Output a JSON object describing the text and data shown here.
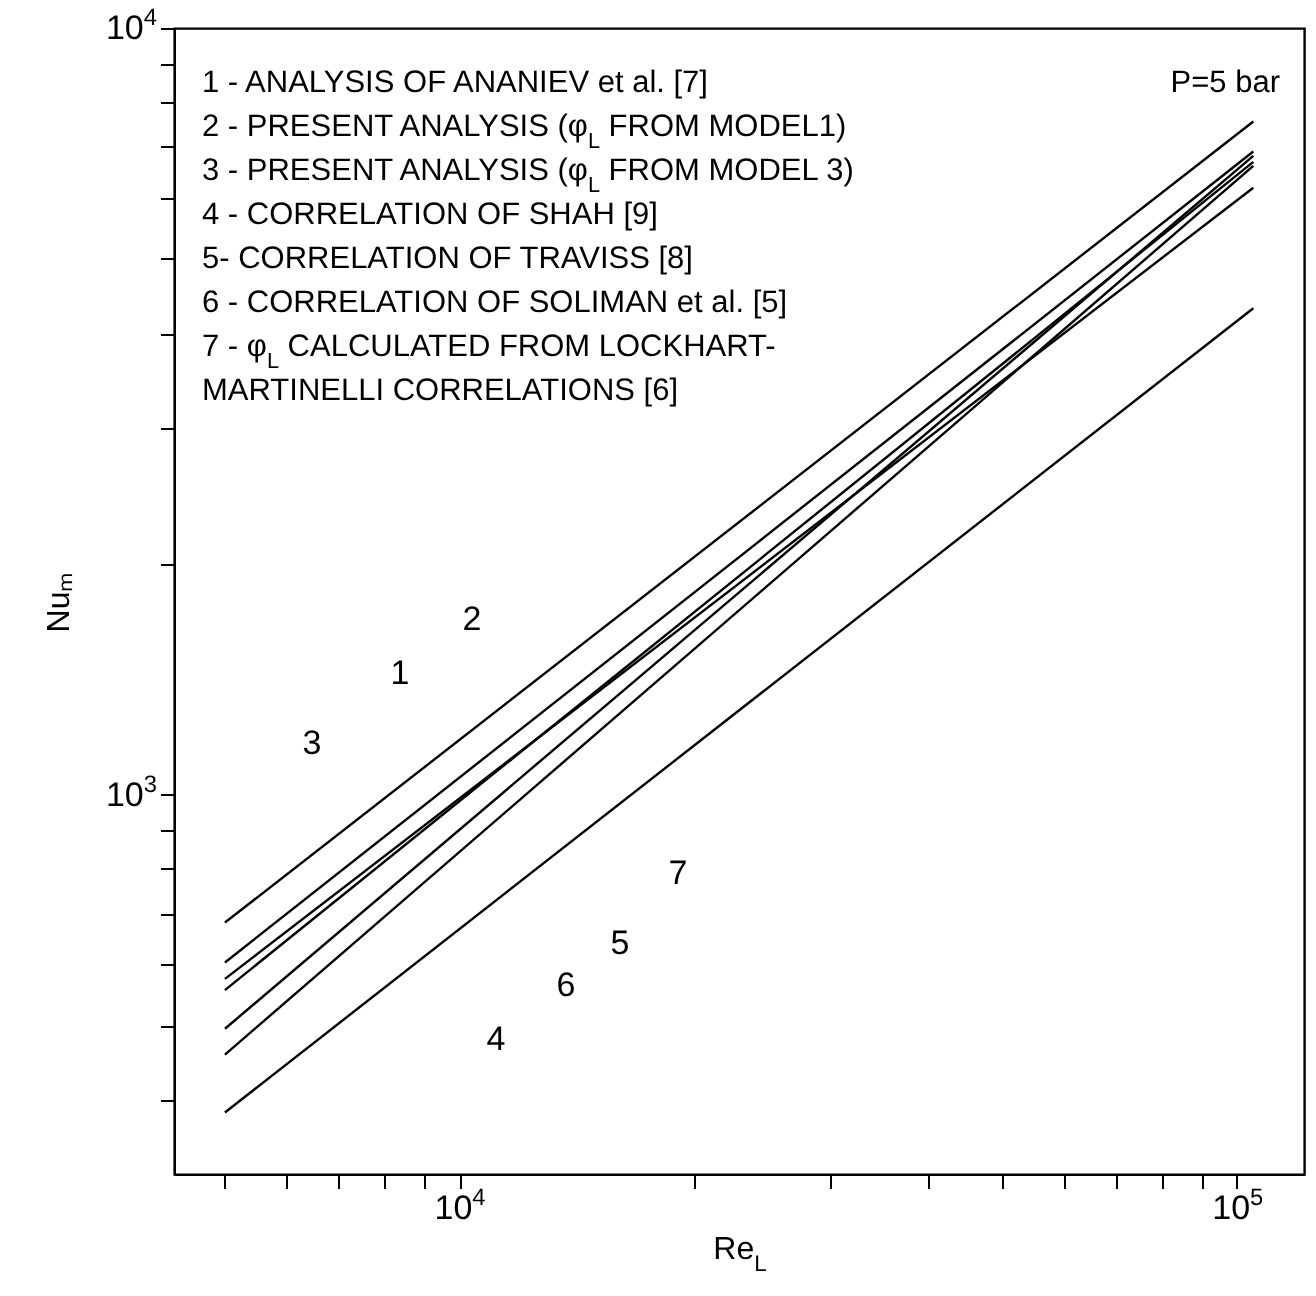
{
  "chart_data": {
    "type": "line",
    "xlabel": "Re$_{L}$",
    "ylabel": "Nuₘ",
    "x": [
      5000,
      105000
    ],
    "series": [
      {
        "color": "#000000",
        "values": [
          575,
          6190
        ]
      },
      {
        "color": "#000000",
        "values": [
          604,
          6900
        ]
      },
      {
        "color": "#000000",
        "values": [
          681,
          7550
        ]
      },
      {
        "color": "#000000",
        "values": [
          385,
          4310
        ]
      },
      {
        "color": "#000000",
        "values": [
          495,
          6810
        ]
      },
      {
        "color": "#000000",
        "values": [
          458,
          6610
        ]
      },
      {
        "color": "#000000",
        "values": [
          556,
          6690
        ]
      }
    ],
    "log": "xy",
    "grid": false,
    "xlim": [
      4300,
      122000
    ],
    "ylim": [
      320,
      10000
    ],
    "xticks": [
      {
        "value": 5000,
        "label": null
      },
      {
        "value": 6000,
        "label": null
      },
      {
        "value": 7000,
        "label": null
      },
      {
        "value": 8000,
        "label": null
      },
      {
        "value": 9000,
        "label": null
      },
      {
        "value": 10000,
        "label": "10$^{4}$"
      },
      {
        "value": 20000,
        "label": null
      },
      {
        "value": 30000,
        "label": null
      },
      {
        "value": 40000,
        "label": null
      },
      {
        "value": 50000,
        "label": null
      },
      {
        "value": 60000,
        "label": null
      },
      {
        "value": 70000,
        "label": null
      },
      {
        "value": 80000,
        "label": null
      },
      {
        "value": 90000,
        "label": null
      },
      {
        "value": 100000,
        "label": "10$^{5}$"
      }
    ],
    "yticks": [
      {
        "value": 400,
        "label": null
      },
      {
        "value": 500,
        "label": null
      },
      {
        "value": 600,
        "label": null
      },
      {
        "value": 700,
        "label": null
      },
      {
        "value": 800,
        "label": null
      },
      {
        "value": 900,
        "label": null
      },
      {
        "value": 1000,
        "label": "10$^{3}$"
      },
      {
        "value": 2000,
        "label": null
      },
      {
        "value": 3000,
        "label": null
      },
      {
        "value": 4000,
        "label": null
      },
      {
        "value": 5000,
        "label": null
      },
      {
        "value": 6000,
        "label": null
      },
      {
        "value": 7000,
        "label": null
      },
      {
        "value": 8000,
        "label": null
      },
      {
        "value": 9000,
        "label": null
      },
      {
        "value": 10000,
        "label": "10$^{4}$"
      }
    ],
    "annotations": [
      "1 - ANALYSIS OF ANANIEV et al. [7]",
      "2 - PRESENT ANALYSIS (φ$_{L}$ FROM MODEL1)",
      "3 - PRESENT ANALYSIS (φ$_{L}$ FROM MODEL 3)",
      "4 - CORRELATION OF SHAH [9]",
      "5- CORRELATION OF TRAVISS [8]",
      "6 - CORRELATION OF SOLIMAN et al. [5]",
      "7 - φ$_{L}$ CALCULATED FROM LOCKHART-\nMARTINELLI CORRELATIONS [6]",
      "P=5 bar",
      "1",
      "2",
      "3",
      "4",
      "5",
      "6",
      "7"
    ]
  }
}
